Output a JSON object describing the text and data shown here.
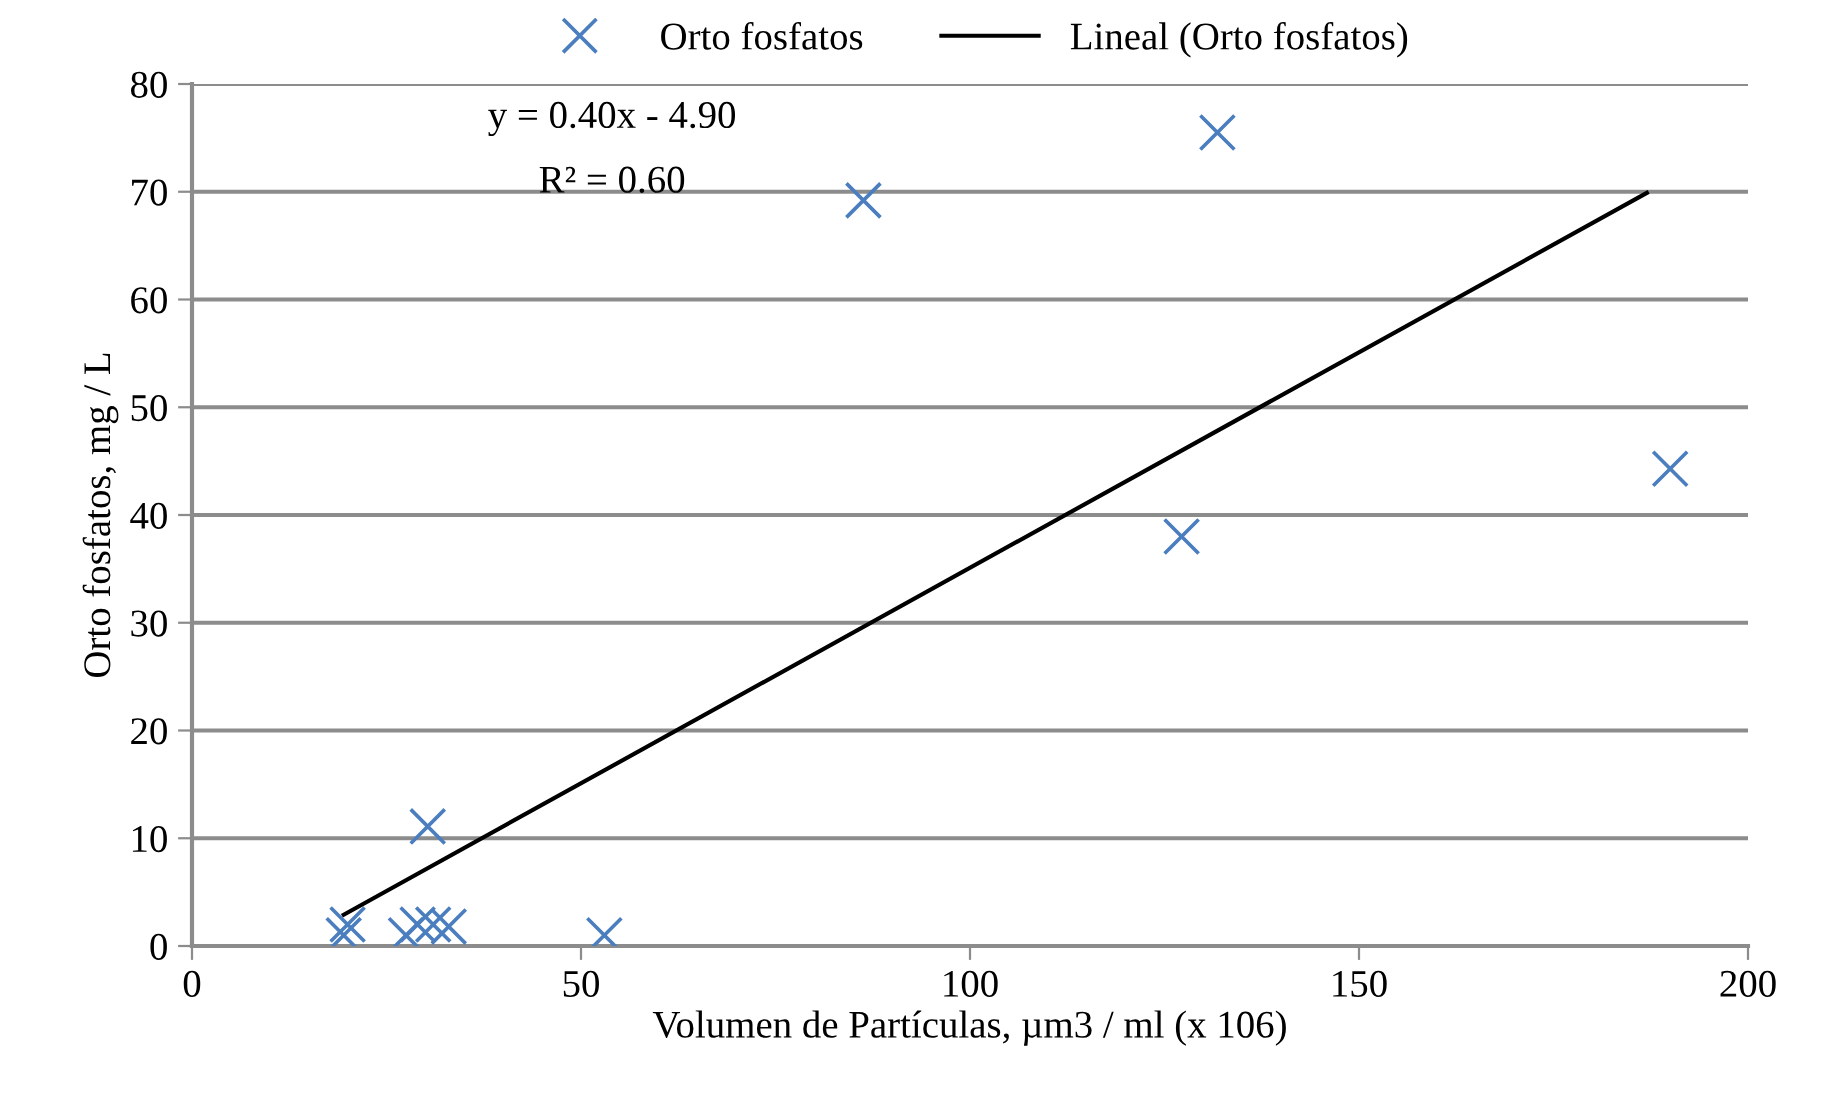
{
  "chart_data": {
    "type": "scatter",
    "xlabel": "Volumen de Partículas, µm3 / ml (x 106)",
    "ylabel": "Orto fosfatos, mg / L",
    "series": [
      {
        "name": "Orto fosfatos",
        "color": "#4a7ebf",
        "marker": "cross",
        "x": [
          19.5,
          20,
          27.5,
          29,
          30.3,
          31,
          33,
          53,
          86.3,
          131.8,
          127.2,
          190
        ],
        "values": [
          1,
          2,
          1,
          2,
          11.1,
          2,
          1.8,
          1,
          69.2,
          75.5,
          38,
          44.3
        ]
      },
      {
        "name": "Lineal (Orto fosfatos)",
        "type": "line",
        "color": "#000000",
        "marker": "none",
        "x": [
          19.5,
          187
        ],
        "values": [
          2.9,
          69.9
        ]
      }
    ],
    "annotations": [
      "y = 0.40x - 4.90",
      "R² = 0.60"
    ],
    "xlim": [
      0,
      200
    ],
    "xticks": [
      0,
      50,
      100,
      150,
      200
    ],
    "ylim": [
      0,
      80
    ],
    "yticks": [
      0,
      10,
      20,
      30,
      40,
      50,
      60,
      70,
      80
    ],
    "grid": "y",
    "legend": "top"
  }
}
